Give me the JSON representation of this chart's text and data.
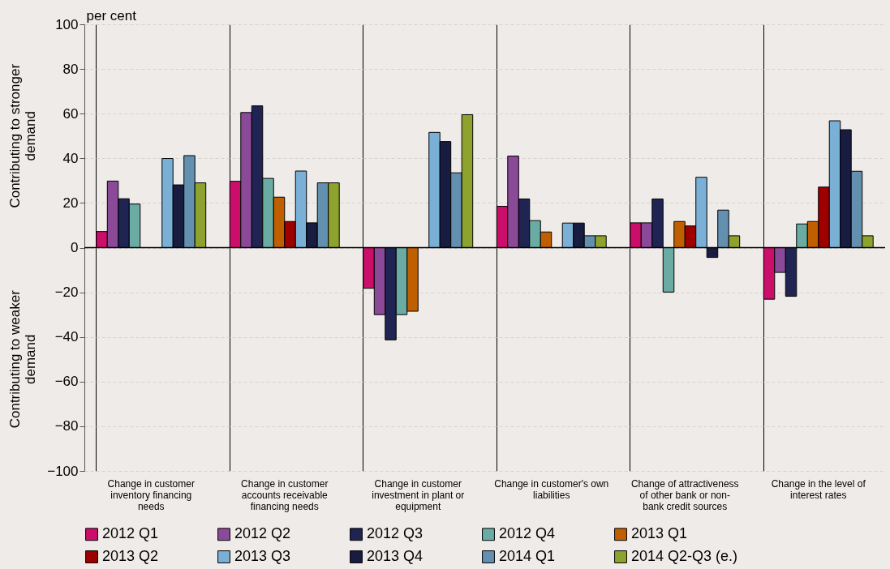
{
  "chart_data": {
    "type": "bar",
    "ylabel": "per cent",
    "annotations": [
      "Contributing to stronger demand",
      "Contributing to weaker demand"
    ],
    "categories": [
      "Change in customer inventory financing needs",
      "Change in customer accounts receivable financing needs",
      "Change in customer investment in plant or equipment",
      "Change in customer's own liabilities",
      "Change of attractiveness of other bank or non-bank credit sources",
      "Change in the level of interest rates"
    ],
    "series": [
      {
        "name": "2012 Q1",
        "color": "#cc0e6b",
        "values": [
          7.2,
          29.7,
          -18.2,
          18.5,
          11.1,
          -23.1
        ]
      },
      {
        "name": "2012 Q2",
        "color": "#8b4a97",
        "values": [
          29.8,
          60.5,
          -30,
          41,
          11.1,
          -11.1
        ]
      },
      {
        "name": "2012 Q3",
        "color": "#1f2452",
        "values": [
          21.9,
          63.5,
          -41.3,
          21.8,
          21.8,
          -21.8
        ]
      },
      {
        "name": "2012 Q4",
        "color": "#6aaba3",
        "values": [
          19.5,
          31,
          -30,
          12.1,
          -19.9,
          10.6
        ]
      },
      {
        "name": "2013 Q1",
        "color": "#bf5f00",
        "values": [
          null,
          22.6,
          -28.5,
          7,
          11.7,
          11.7
        ]
      },
      {
        "name": "2013 Q2",
        "color": "#9e0000",
        "values": [
          null,
          11.7,
          null,
          null,
          9.7,
          27.1
        ]
      },
      {
        "name": "2013 Q3",
        "color": "#7bb0d6",
        "values": [
          39.9,
          34.3,
          51.6,
          11,
          31.5,
          56.8
        ]
      },
      {
        "name": "2013 Q4",
        "color": "#171c40",
        "values": [
          28.1,
          11.1,
          47.5,
          11,
          -4.4,
          52.8
        ]
      },
      {
        "name": "2014 Q1",
        "color": "#6490b0",
        "values": [
          41.2,
          29,
          33.5,
          5.3,
          16.8,
          34.2
        ]
      },
      {
        "name": "2014 Q2-Q3 (e.)",
        "color": "#8ea22e",
        "values": [
          29,
          29,
          59.5,
          5.3,
          5.3,
          5.3
        ]
      }
    ],
    "ylim": [
      -100,
      100
    ],
    "yticks": [
      -100,
      -80,
      -60,
      -40,
      -20,
      0,
      20,
      40,
      60,
      80,
      100
    ],
    "ref_lines": [
      {
        "axis": "y",
        "value": 0
      }
    ],
    "grid": true,
    "legend": "bottom"
  }
}
